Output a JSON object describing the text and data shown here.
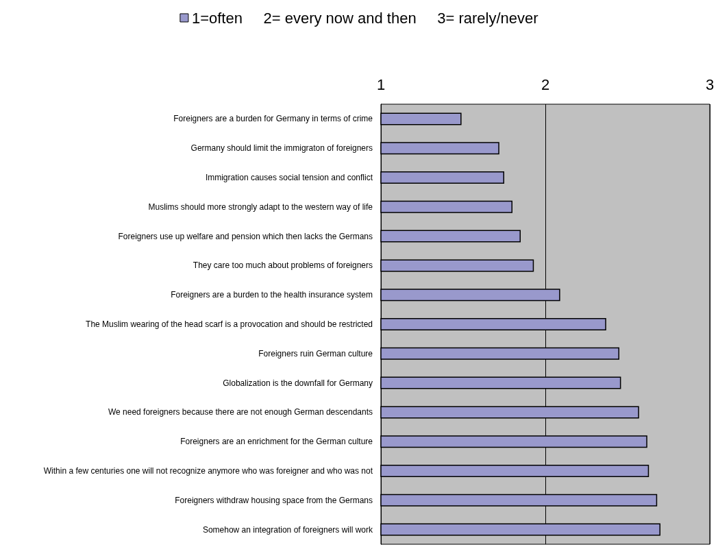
{
  "chart_data": {
    "type": "bar",
    "orientation": "horizontal",
    "categories": [
      "Foreigners are a burden for Germany in terms of crime",
      "Germany should limit the immigraton of foreigners",
      "Immigration causes social tension and conflict",
      "Muslims should more strongly adapt to the western way of life",
      "Foreigners use up welfare and pension which then lacks the Germans",
      "They care too much about problems of foreigners",
      "Foreigners are a burden to the health insurance system",
      "The Muslim wearing of the head scarf is a provocation and should be restricted",
      "Foreigners ruin German culture",
      "Globalization is the downfall for Germany",
      "We need foreigners because there are not enough German descendants",
      "Foreigners are an enrichment for the German culture",
      "Within a few centuries one will not recognize anymore who was foreigner and who was not",
      "Foreigners withdraw housing space from the Germans",
      "Somehow an integration of foreigners will work"
    ],
    "series": [
      {
        "name": "1=often     2= every now and then     3= rarely/never",
        "color": "#9999cc",
        "values": [
          1.49,
          1.72,
          1.75,
          1.8,
          1.85,
          1.93,
          2.09,
          2.37,
          2.45,
          2.46,
          2.57,
          2.62,
          2.63,
          2.68,
          2.7
        ]
      }
    ],
    "xlim": [
      1,
      3
    ],
    "xticks": [
      1,
      2,
      3
    ],
    "grid": "x",
    "legend": "top"
  }
}
